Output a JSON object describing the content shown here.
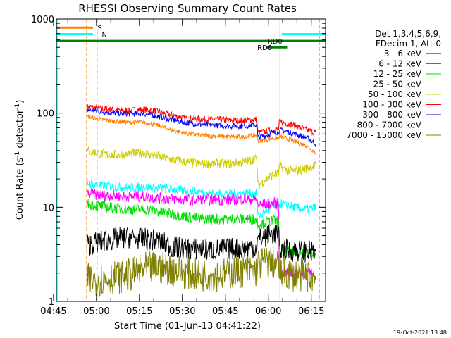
{
  "chart_data": {
    "type": "line",
    "title": "RHESSI Observing Summary Count Rates",
    "xlabel": "Start Time (01-Jun-13 04:41:22)",
    "ylabel_main": "Count Rate (s",
    "ylabel_sup1": "-1",
    "ylabel_mid": " detector",
    "ylabel_sup2": "-1",
    "ylabel_end": ")",
    "yscale": "log",
    "ylim": [
      1,
      1000
    ],
    "xlim_minutes": [
      4.6333,
      98.6333
    ],
    "x_ticks": [
      {
        "label": "04:45",
        "m": 3.6333
      },
      {
        "label": "05:00",
        "m": 18.6333
      },
      {
        "label": "05:15",
        "m": 33.6333
      },
      {
        "label": "05:30",
        "m": 48.6333
      },
      {
        "label": "05:45",
        "m": 63.6333
      },
      {
        "label": "06:00",
        "m": 78.6333
      },
      {
        "label": "06:15",
        "m": 93.6333
      }
    ],
    "y_ticks": [
      {
        "label": "1",
        "v": 1
      },
      {
        "label": "10",
        "v": 10
      },
      {
        "label": "100",
        "v": 100
      },
      {
        "label": "1000",
        "v": 1000
      }
    ],
    "legend": {
      "header1": "Det 1,3,4,5,6,9,",
      "header2": "FDecim 1, Att 0",
      "entries": [
        {
          "name": "3 - 6 keV",
          "color": "#000000"
        },
        {
          "name": "6 - 12 keV",
          "color": "#ff00ff"
        },
        {
          "name": "12 - 25 keV",
          "color": "#00dd00"
        },
        {
          "name": "25 - 50 keV",
          "color": "#00ffff"
        },
        {
          "name": "50 - 100 keV",
          "color": "#cccc00"
        },
        {
          "name": "100 - 300 keV",
          "color": "#ff0000"
        },
        {
          "name": "300 - 800 keV",
          "color": "#0000ff"
        },
        {
          "name": "800 - 7000 keV",
          "color": "#ff8000"
        },
        {
          "name": "7000 - 15000 keV",
          "color": "#808000"
        }
      ]
    },
    "series": [
      {
        "name": "100 - 300 keV",
        "color": "#ff0000",
        "noise": 0.035,
        "points": [
          [
            15.3,
            118
          ],
          [
            20,
            112
          ],
          [
            25,
            108
          ],
          [
            30,
            106
          ],
          [
            35,
            110
          ],
          [
            40,
            104
          ],
          [
            45,
            95
          ],
          [
            50,
            88
          ],
          [
            55,
            86
          ],
          [
            60,
            86
          ],
          [
            65,
            84
          ],
          [
            70,
            84
          ],
          [
            74.6,
            86
          ],
          [
            75,
            62
          ],
          [
            78,
            64
          ],
          [
            80,
            66
          ],
          [
            82.2,
            67
          ],
          [
            82.5,
            80
          ],
          [
            85,
            78
          ],
          [
            88,
            74
          ],
          [
            92,
            66
          ],
          [
            95.3,
            62
          ]
        ]
      },
      {
        "name": "300 - 800 keV",
        "color": "#0000ff",
        "noise": 0.03,
        "points": [
          [
            15.3,
            108
          ],
          [
            20,
            104
          ],
          [
            25,
            100
          ],
          [
            30,
            98
          ],
          [
            35,
            99
          ],
          [
            40,
            93
          ],
          [
            45,
            85
          ],
          [
            50,
            79
          ],
          [
            55,
            76
          ],
          [
            60,
            74
          ],
          [
            65,
            73
          ],
          [
            70,
            73
          ],
          [
            74.6,
            75
          ],
          [
            75,
            55
          ],
          [
            78,
            58
          ],
          [
            80,
            62
          ],
          [
            82.2,
            63
          ],
          [
            82.5,
            66
          ],
          [
            85,
            64
          ],
          [
            88,
            60
          ],
          [
            92,
            55
          ],
          [
            95.3,
            47
          ]
        ]
      },
      {
        "name": "800 - 7000 keV",
        "color": "#ff8000",
        "noise": 0.025,
        "points": [
          [
            15.3,
            92
          ],
          [
            20,
            86
          ],
          [
            25,
            82
          ],
          [
            30,
            80
          ],
          [
            35,
            80
          ],
          [
            40,
            74
          ],
          [
            45,
            66
          ],
          [
            50,
            61
          ],
          [
            55,
            58
          ],
          [
            60,
            57
          ],
          [
            65,
            56
          ],
          [
            70,
            56
          ],
          [
            74.6,
            58
          ],
          [
            75,
            50
          ],
          [
            78,
            52
          ],
          [
            80,
            54
          ],
          [
            82.2,
            54
          ],
          [
            82.5,
            56
          ],
          [
            85,
            54
          ],
          [
            88,
            50
          ],
          [
            92,
            45
          ],
          [
            95.3,
            38
          ]
        ]
      },
      {
        "name": "50 - 100 keV",
        "color": "#cccc00",
        "noise": 0.05,
        "points": [
          [
            15.3,
            40
          ],
          [
            20,
            37
          ],
          [
            25,
            36
          ],
          [
            30,
            37
          ],
          [
            35,
            38
          ],
          [
            40,
            35
          ],
          [
            45,
            32
          ],
          [
            50,
            30
          ],
          [
            55,
            29
          ],
          [
            60,
            29
          ],
          [
            65,
            29
          ],
          [
            70,
            30
          ],
          [
            74.6,
            33
          ],
          [
            75,
            17
          ],
          [
            78,
            20
          ],
          [
            80,
            22
          ],
          [
            82.2,
            23
          ],
          [
            82.5,
            27
          ],
          [
            85,
            25
          ],
          [
            88,
            24
          ],
          [
            92,
            26
          ],
          [
            95.3,
            28
          ]
        ]
      },
      {
        "name": "25 - 50 keV",
        "color": "#00ffff",
        "noise": 0.05,
        "points": [
          [
            15.3,
            18
          ],
          [
            20,
            17
          ],
          [
            25,
            16.5
          ],
          [
            30,
            16
          ],
          [
            35,
            16.5
          ],
          [
            40,
            16
          ],
          [
            45,
            15.5
          ],
          [
            50,
            15
          ],
          [
            55,
            14.5
          ],
          [
            60,
            14
          ],
          [
            65,
            14
          ],
          [
            70,
            14
          ],
          [
            74.6,
            14
          ],
          [
            75,
            8
          ],
          [
            78,
            9
          ],
          [
            80,
            10
          ],
          [
            82.2,
            10
          ],
          [
            82.5,
            11
          ],
          [
            85,
            10.5
          ],
          [
            88,
            10
          ],
          [
            92,
            9.5
          ],
          [
            95.3,
            10
          ]
        ]
      },
      {
        "name": "6 - 12 keV",
        "color": "#ff00ff",
        "noise": 0.06,
        "points": [
          [
            15.3,
            14
          ],
          [
            20,
            13.5
          ],
          [
            25,
            13.2
          ],
          [
            30,
            13
          ],
          [
            35,
            13
          ],
          [
            40,
            12.5
          ],
          [
            45,
            12.3
          ],
          [
            50,
            12
          ],
          [
            55,
            12
          ],
          [
            60,
            12
          ],
          [
            65,
            12
          ],
          [
            70,
            12.2
          ],
          [
            74.6,
            12.2
          ],
          [
            75,
            10.5
          ],
          [
            78,
            10.8
          ],
          [
            80,
            11
          ],
          [
            82.2,
            11
          ],
          [
            82.5,
            2
          ],
          [
            90,
            2
          ],
          [
            94,
            2
          ]
        ]
      },
      {
        "name": "12 - 25 keV",
        "color": "#00dd00",
        "noise": 0.06,
        "points": [
          [
            15.3,
            11
          ],
          [
            20,
            10.3
          ],
          [
            25,
            9.8
          ],
          [
            30,
            9.5
          ],
          [
            35,
            9.5
          ],
          [
            40,
            9
          ],
          [
            45,
            8.5
          ],
          [
            50,
            8
          ],
          [
            55,
            7.5
          ],
          [
            60,
            7.5
          ],
          [
            65,
            7.5
          ],
          [
            70,
            7.5
          ],
          [
            74.6,
            7.5
          ],
          [
            75,
            6.5
          ],
          [
            78,
            7
          ],
          [
            80,
            7.2
          ],
          [
            82.2,
            7
          ],
          [
            82.5,
            3.5
          ],
          [
            85,
            3.4
          ],
          [
            88,
            3.3
          ],
          [
            92,
            3.2
          ],
          [
            95.3,
            3
          ]
        ]
      },
      {
        "name": "3 - 6 keV",
        "color": "#000000",
        "noise": 0.12,
        "points": [
          [
            15.3,
            4
          ],
          [
            20,
            4.3
          ],
          [
            25,
            4.6
          ],
          [
            30,
            4.8
          ],
          [
            35,
            4.6
          ],
          [
            40,
            4.4
          ],
          [
            45,
            3.8
          ],
          [
            50,
            3.6
          ],
          [
            55,
            3.6
          ],
          [
            60,
            3.5
          ],
          [
            65,
            3.6
          ],
          [
            70,
            3.7
          ],
          [
            74.6,
            3.8
          ],
          [
            75,
            4.5
          ],
          [
            78,
            5
          ],
          [
            80,
            5.2
          ],
          [
            82.2,
            5.2
          ],
          [
            82.5,
            3.6
          ],
          [
            85,
            3.5
          ],
          [
            88,
            3.5
          ],
          [
            92,
            3.4
          ],
          [
            95.3,
            3.3
          ]
        ]
      },
      {
        "name": "7000 - 15000 keV",
        "color": "#808000",
        "noise": 0.18,
        "points": [
          [
            15.3,
            1.7
          ],
          [
            20,
            1.7
          ],
          [
            25,
            1.8
          ],
          [
            30,
            1.9
          ],
          [
            35,
            2.2
          ],
          [
            40,
            2.3
          ],
          [
            45,
            2.2
          ],
          [
            50,
            2.0
          ],
          [
            55,
            1.9
          ],
          [
            60,
            1.9
          ],
          [
            65,
            2.0
          ],
          [
            70,
            2.1
          ],
          [
            74.6,
            2.1
          ],
          [
            75,
            2.5
          ],
          [
            78,
            2.6
          ],
          [
            80,
            2.6
          ],
          [
            82.2,
            2.5
          ],
          [
            82.5,
            2.0
          ],
          [
            85,
            2.0
          ],
          [
            88,
            1.9
          ],
          [
            92,
            1.9
          ],
          [
            95.3,
            1.8
          ]
        ]
      }
    ],
    "state_bars": [
      {
        "label": "S",
        "color": "#ff8000",
        "level": 810,
        "x1": 4.6333,
        "x2": 17.4,
        "label_at": 19.0
      },
      {
        "label": "N",
        "color": "#00ffff",
        "level": 690,
        "x1": 4.6333,
        "x2": 17.4,
        "label_at": 20.5
      },
      {
        "label": "N",
        "color": "#00ffff",
        "level": 690,
        "x1": 83.3,
        "x2": 98.6333,
        "label_at": null
      },
      {
        "label": "RD0",
        "color": "#008000",
        "level": 585,
        "x1": 4.6333,
        "x2": 98.6333,
        "label_at": 78.4
      },
      {
        "label": "RD6",
        "color": "#008000",
        "level": 500,
        "x1": 78.2,
        "x2": 85.2,
        "label_at": 74.8
      }
    ],
    "vlines": [
      {
        "m": 4.9,
        "color": "#00ffff",
        "dash": false
      },
      {
        "m": 15.2,
        "color": "#ff8000",
        "dash": true
      },
      {
        "m": 18.9,
        "color": "#00ffff",
        "dash": true
      },
      {
        "m": 82.7,
        "color": "#00ffff",
        "dash": false
      },
      {
        "m": 96.5,
        "color": "#00ffff",
        "dash": true
      }
    ],
    "footer_date": "19-Oct-2021 13:48"
  }
}
